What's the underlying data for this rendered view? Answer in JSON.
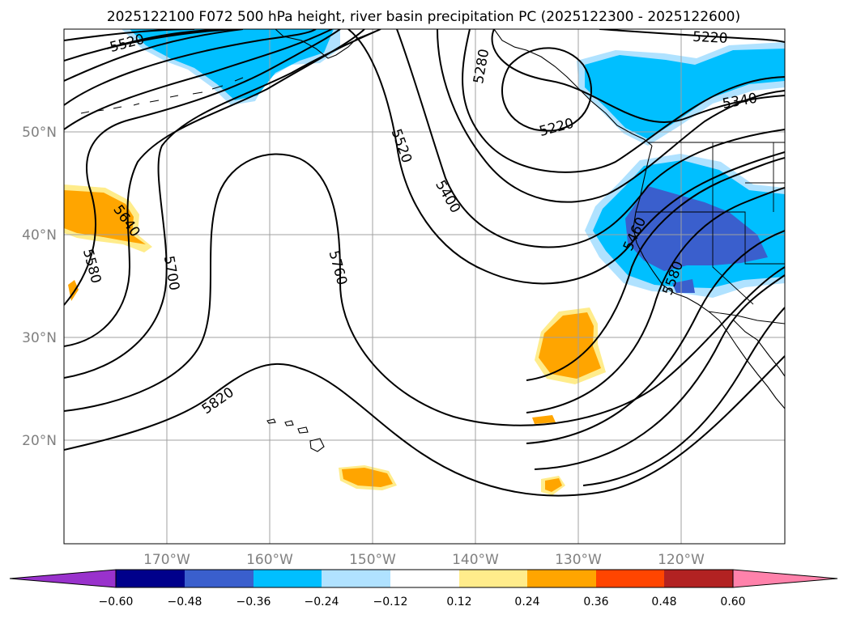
{
  "title": "2025122100 F072 500 hPa height, river basin precipitation PC (2025122300 - 2025122600)",
  "lat_labels": [
    "50°N",
    "40°N",
    "30°N",
    "20°N"
  ],
  "lon_labels": [
    "170°W",
    "160°W",
    "150°W",
    "140°W",
    "130°W",
    "120°W"
  ],
  "contour_labels": [
    "5520",
    "5640",
    "5580",
    "5700",
    "5760",
    "5820",
    "5280",
    "5520",
    "5400",
    "5220",
    "5220",
    "5340",
    "5460",
    "5580"
  ],
  "colorbar": {
    "ticks": [
      "−0.60",
      "−0.48",
      "−0.36",
      "−0.24",
      "−0.12",
      "0.12",
      "0.24",
      "0.36",
      "0.48",
      "0.60"
    ],
    "colors": [
      "#9932cc",
      "#00008b",
      "#3a5fcd",
      "#00bfff",
      "#b0e2ff",
      "#ffffff",
      "#ffec8b",
      "#ffa500",
      "#ff4500",
      "#b22222",
      "#ff82ab"
    ]
  },
  "palette": {
    "strong_negative": "#3a5fcd",
    "negative": "#00bfff",
    "weak_negative": "#b0e2ff",
    "weak_positive": "#ffec8b",
    "positive": "#ffa500"
  }
}
